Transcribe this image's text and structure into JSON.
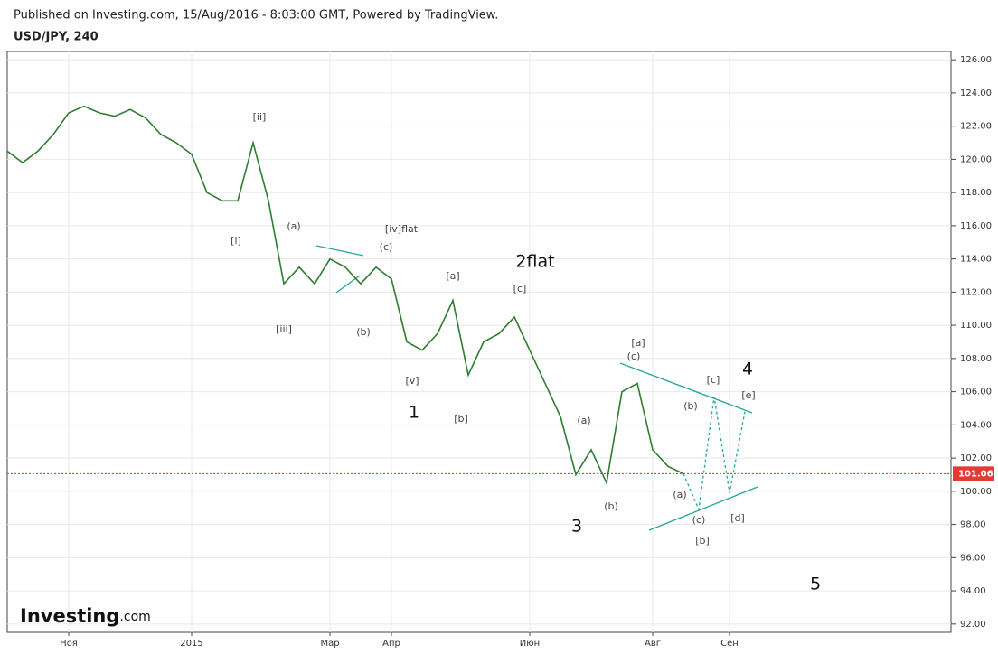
{
  "header": {
    "published": "Published on Investing.com, 15/Aug/2016 - 8:03:00 GMT, Powered by TradingView.",
    "symbol": "USD/JPY, 240"
  },
  "logo": {
    "brand": "Investing",
    "suffix": ".com"
  },
  "chart_data": {
    "type": "line",
    "categories": [
      null,
      null,
      null,
      null,
      "Ноя",
      null,
      null,
      null,
      null,
      null,
      null,
      null,
      "2015",
      null,
      null,
      null,
      null,
      null,
      null,
      null,
      null,
      "Мар",
      null,
      null,
      null,
      "Апр",
      null,
      null,
      null,
      null,
      null,
      null,
      null,
      null,
      "Июн",
      null,
      null,
      null,
      null,
      null,
      null,
      null,
      "Авг",
      null,
      null,
      null,
      null,
      "Сен",
      null,
      null,
      null,
      null,
      null
    ],
    "series": [
      {
        "name": "USD/JPY",
        "color": "#2e7d32",
        "values": [
          120.5,
          119.8,
          120.5,
          121.5,
          122.8,
          123.2,
          122.8,
          122.6,
          123.0,
          122.5,
          121.5,
          121.0,
          120.3,
          118.0,
          117.5,
          117.5,
          121.0,
          117.5,
          112.5,
          113.5,
          112.5,
          114.0,
          113.5,
          112.5,
          113.5,
          112.8,
          109.0,
          108.5,
          109.5,
          111.5,
          107.0,
          109.0,
          109.5,
          110.5,
          108.5,
          106.5,
          104.5,
          101.0,
          102.5,
          100.5,
          106.0,
          106.5,
          102.5,
          101.5,
          101.06,
          null,
          null,
          null,
          null,
          null,
          null,
          null,
          null
        ]
      },
      {
        "name": "Forecast",
        "color": "#26a69a",
        "dashed": true,
        "values": [
          null,
          null,
          null,
          null,
          null,
          null,
          null,
          null,
          null,
          null,
          null,
          null,
          null,
          null,
          null,
          null,
          null,
          null,
          null,
          null,
          null,
          null,
          null,
          null,
          null,
          null,
          null,
          null,
          null,
          null,
          null,
          null,
          null,
          null,
          null,
          null,
          null,
          null,
          null,
          null,
          null,
          null,
          null,
          null,
          101.06,
          98.9,
          105.7,
          99.9,
          104.8,
          null,
          null,
          null,
          94.5
        ]
      }
    ],
    "last_price": 101.06,
    "ylim": [
      91.5,
      126.5
    ],
    "yticks": [
      {
        "value": 92,
        "label": "92.00"
      },
      {
        "value": 94,
        "label": "94.00"
      },
      {
        "value": 96,
        "label": "96.00"
      },
      {
        "value": 98,
        "label": "98.00"
      },
      {
        "value": 100,
        "label": "100.00"
      },
      {
        "value": 102,
        "label": "102.00"
      },
      {
        "value": 104,
        "label": "104.00"
      },
      {
        "value": 106,
        "label": "106.00"
      },
      {
        "value": 108,
        "label": "108.00"
      },
      {
        "value": 110,
        "label": "110.00"
      },
      {
        "value": 112,
        "label": "112.00"
      },
      {
        "value": 114,
        "label": "114.00"
      },
      {
        "value": 116,
        "label": "116.00"
      },
      {
        "value": 118,
        "label": "118.00"
      },
      {
        "value": 120,
        "label": "120.00"
      },
      {
        "value": 122,
        "label": "122.00"
      },
      {
        "value": 124,
        "label": "124.00"
      },
      {
        "value": 126,
        "label": "126.00"
      }
    ],
    "grid": true,
    "annotations": [
      "[ii]",
      "[i]",
      "(a)",
      "[iii]",
      "[iv]flat",
      "(c)",
      "(b)",
      "[v]",
      "1",
      "[a]",
      "[b]",
      "2flat",
      "[c]",
      "(a)",
      "3",
      "(b)",
      "[a]",
      "(c)",
      "(b)",
      "[c]",
      "4",
      "[e]",
      "(a)",
      "(c)",
      "[b]",
      "[d]",
      "5"
    ]
  }
}
